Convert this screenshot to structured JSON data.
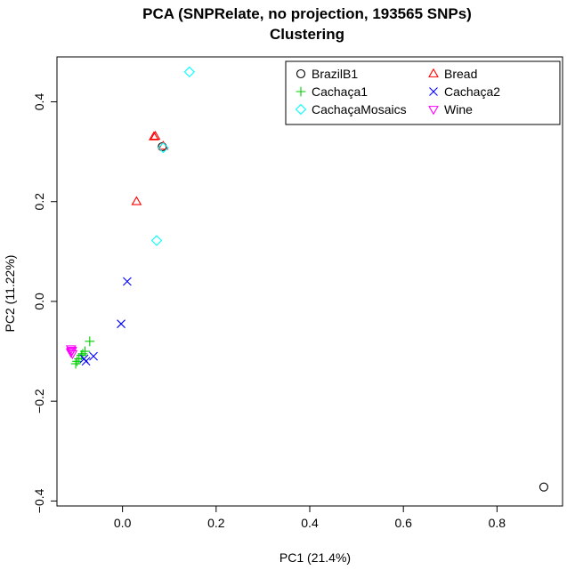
{
  "chart_data": {
    "type": "scatter",
    "title": "PCA (SNPRelate, no projection, 193565 SNPs)",
    "subtitle": "Clustering",
    "xlabel": "PC1 (21.4%)",
    "ylabel": "PC2 (11.22%)",
    "xlim": [
      -0.14,
      0.94
    ],
    "ylim": [
      -0.41,
      0.49
    ],
    "xticks": [
      {
        "value": 0.0,
        "label": "0.0"
      },
      {
        "value": 0.2,
        "label": "0.2"
      },
      {
        "value": 0.4,
        "label": "0.4"
      },
      {
        "value": 0.6,
        "label": "0.6"
      },
      {
        "value": 0.8,
        "label": "0.8"
      }
    ],
    "yticks": [
      {
        "value": -0.4,
        "label": "−0.4"
      },
      {
        "value": -0.2,
        "label": "−0.2"
      },
      {
        "value": 0.0,
        "label": "0.0"
      },
      {
        "value": 0.2,
        "label": "0.2"
      },
      {
        "value": 0.4,
        "label": "0.4"
      }
    ],
    "grid": false,
    "legend_position": "top-right",
    "series": [
      {
        "name": "BrazilB1",
        "marker": "circle",
        "color": "#000000",
        "points": [
          [
            0.9,
            -0.372
          ],
          [
            0.085,
            0.31
          ]
        ]
      },
      {
        "name": "Bread",
        "marker": "triangle-up",
        "color": "#ff0000",
        "points": [
          [
            0.067,
            0.33
          ],
          [
            0.07,
            0.331
          ],
          [
            0.03,
            0.2
          ],
          [
            0.087,
            0.311
          ]
        ]
      },
      {
        "name": "Cachaça1",
        "marker": "plus",
        "color": "#00cd00",
        "points": [
          [
            -0.07,
            -0.08
          ],
          [
            -0.08,
            -0.1
          ],
          [
            -0.088,
            -0.108
          ],
          [
            -0.093,
            -0.115
          ],
          [
            -0.097,
            -0.12
          ],
          [
            -0.1,
            -0.125
          ],
          [
            -0.085,
            -0.105
          ]
        ]
      },
      {
        "name": "Cachaça2",
        "marker": "cross",
        "color": "#0000ff",
        "points": [
          [
            0.01,
            0.04
          ],
          [
            -0.003,
            -0.045
          ],
          [
            -0.062,
            -0.11
          ],
          [
            -0.078,
            -0.12
          ],
          [
            -0.082,
            -0.115
          ]
        ]
      },
      {
        "name": "CachaçaMosaics",
        "marker": "diamond",
        "color": "#00ffff",
        "points": [
          [
            0.143,
            0.46
          ],
          [
            0.087,
            0.308
          ],
          [
            0.073,
            0.122
          ]
        ]
      },
      {
        "name": "Wine",
        "marker": "triangle-down",
        "color": "#ff00ff",
        "points": [
          [
            -0.11,
            -0.095
          ],
          [
            -0.108,
            -0.098
          ],
          [
            -0.11,
            -0.102
          ],
          [
            -0.107,
            -0.105
          ],
          [
            -0.109,
            -0.1
          ]
        ]
      }
    ]
  }
}
